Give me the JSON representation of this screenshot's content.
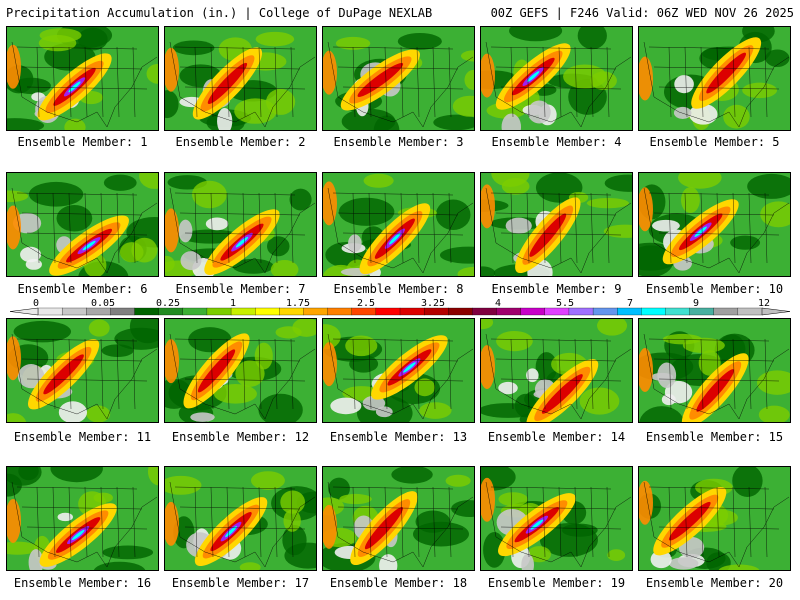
{
  "header": {
    "left": "Precipitation Accumulation (in.) | College of DuPage NEXLAB",
    "right": "00Z GEFS | F246 Valid: 06Z WED NOV 26 2025"
  },
  "members": [
    "Ensemble Member: 1",
    "Ensemble Member: 2",
    "Ensemble Member: 3",
    "Ensemble Member: 4",
    "Ensemble Member: 5",
    "Ensemble Member: 6",
    "Ensemble Member: 7",
    "Ensemble Member: 8",
    "Ensemble Member: 9",
    "Ensemble Member: 10",
    "Ensemble Member: 11",
    "Ensemble Member: 12",
    "Ensemble Member: 13",
    "Ensemble Member: 14",
    "Ensemble Member: 15",
    "Ensemble Member: 16",
    "Ensemble Member: 17",
    "Ensemble Member: 18",
    "Ensemble Member: 19",
    "Ensemble Member: 20"
  ],
  "colorbar": {
    "tick_labels": [
      "0",
      "0.05",
      "0.25",
      "1",
      "1.75",
      "2.5",
      "3.25",
      "4",
      "5.5",
      "7",
      "9",
      "12"
    ],
    "colors": [
      "#e8e8e8",
      "#c8c8c8",
      "#a8a8a8",
      "#808080",
      "#006400",
      "#228b22",
      "#3cb034",
      "#7ccd00",
      "#c8f000",
      "#ffff00",
      "#ffd700",
      "#ffa500",
      "#ff7f00",
      "#ff4500",
      "#ff0000",
      "#dc0000",
      "#b40000",
      "#8b0000",
      "#800040",
      "#a0006e",
      "#c800c8",
      "#e040ff",
      "#a070ff",
      "#6495ed",
      "#00bfff",
      "#00ffff",
      "#40e0d0",
      "#48b0a0",
      "#a0a0a0",
      "#c0c0c0"
    ]
  },
  "map_colors": {
    "base": "#3cb034",
    "dark": "#006400",
    "light": "#7ccd00",
    "gray": "#c8c8c8",
    "white": "#f0f0f0",
    "yellow": "#ffd700",
    "orange": "#ff8c00",
    "red": "#dc0000",
    "maroon": "#8b0000",
    "purple": "#a020f0",
    "cyan": "#00ffff",
    "border": "#000000"
  }
}
